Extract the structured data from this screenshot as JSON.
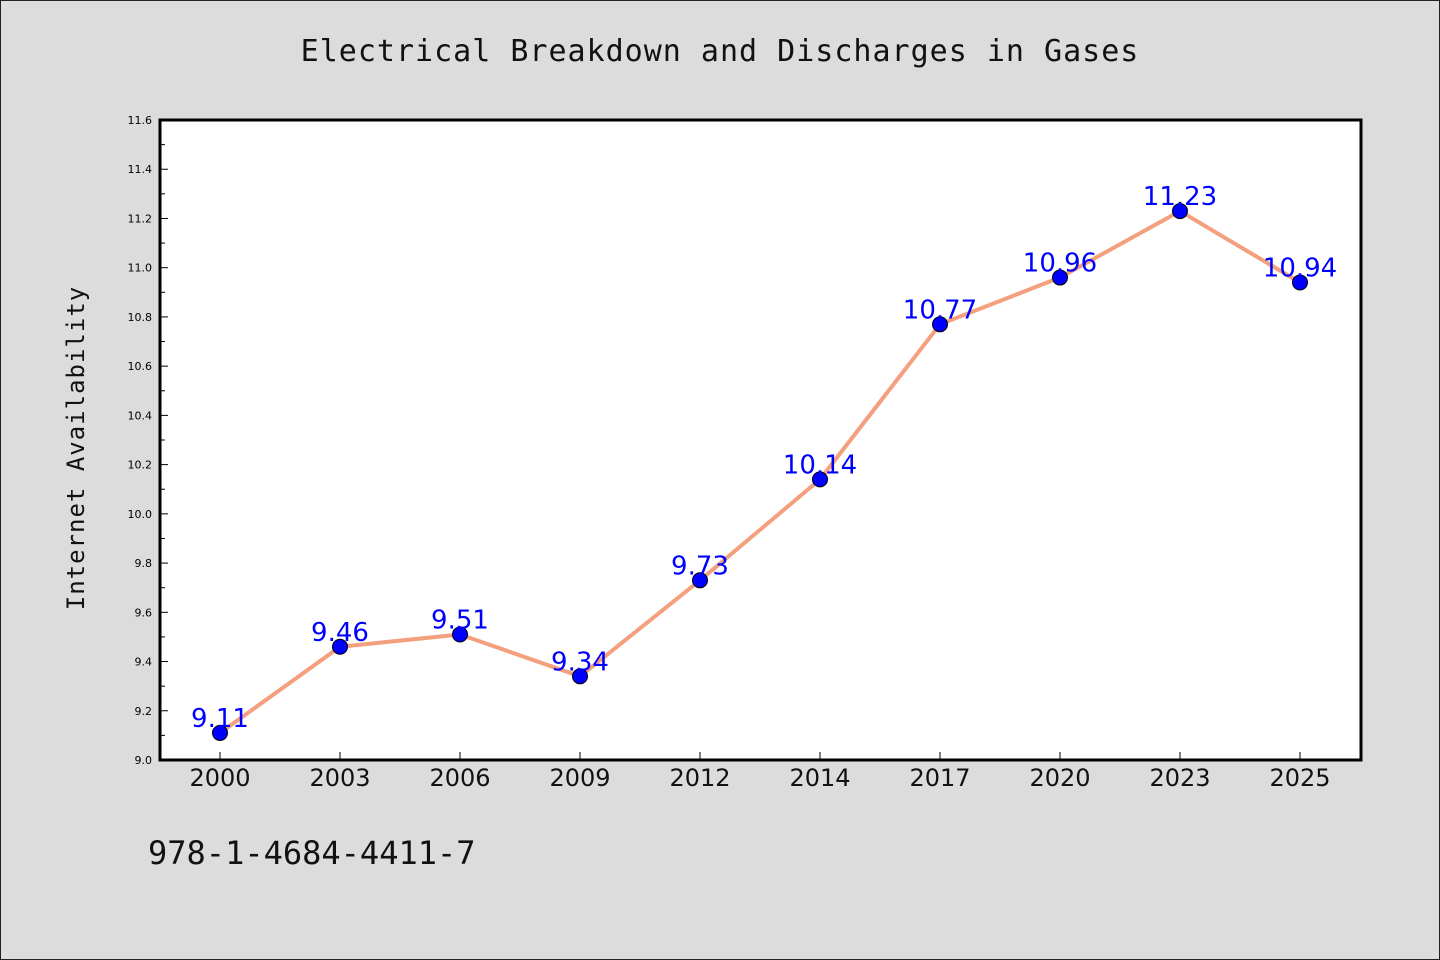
{
  "chart_data": {
    "type": "line",
    "title": "Electrical Breakdown and Discharges in Gases",
    "xlabel": "",
    "ylabel": "Internet Availability",
    "categories": [
      "2000",
      "2003",
      "2006",
      "2009",
      "2012",
      "2014",
      "2017",
      "2020",
      "2023",
      "2025"
    ],
    "series": [
      {
        "values": [
          9.11,
          9.46,
          9.51,
          9.34,
          9.73,
          10.14,
          10.77,
          10.96,
          11.23,
          10.94
        ],
        "labels": [
          "9.11",
          "9.46",
          "9.51",
          "9.34",
          "9.73",
          "10.14",
          "10.77",
          "10.96",
          "11.23",
          "10.94"
        ],
        "line_color": "#f4a07e",
        "marker_color": "#0000ff",
        "label_color": "#0000ff"
      }
    ],
    "ylim": [
      9.0,
      11.6
    ],
    "y_ticks": [
      "9.0",
      "9.2",
      "9.4",
      "9.6",
      "9.8",
      "10.0",
      "10.2",
      "10.4",
      "10.6",
      "10.8",
      "11.0",
      "11.2",
      "11.4",
      "11.6"
    ],
    "grid": false,
    "legend": "none"
  },
  "footnote": "978-1-4684-4411-7"
}
